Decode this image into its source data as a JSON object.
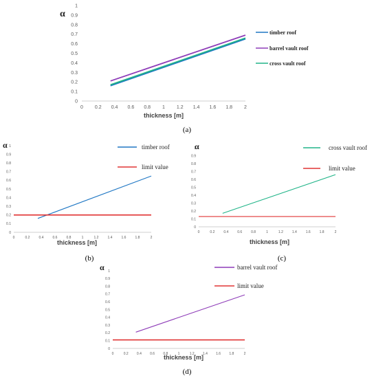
{
  "colors": {
    "timber": "#1f77c4",
    "barrel": "#8e3cb8",
    "cross": "#20b488",
    "limit": "#e03434",
    "axis": "#bfbfbf",
    "tick_text": "#595959"
  },
  "chart_data": [
    {
      "id": "a",
      "type": "line",
      "caption": "(a)",
      "ylabel": "α",
      "xlabel": "thickness [m]",
      "xlim": [
        0,
        2
      ],
      "ylim": [
        0,
        1
      ],
      "x_ticks": [
        "0",
        "0.2",
        "0.4",
        "0.6",
        "0.8",
        "1",
        "1.2",
        "1.4",
        "1.6",
        "1.8",
        "2"
      ],
      "y_ticks": [
        "0",
        "0.1",
        "0.2",
        "0.3",
        "0.4",
        "0.5",
        "0.6",
        "0.7",
        "0.8",
        "0.9",
        "1"
      ],
      "legend_position": "right",
      "series": [
        {
          "name": "timber roof",
          "color": "#1f77c4",
          "x": [
            0.35,
            2
          ],
          "y": [
            0.16,
            0.65
          ]
        },
        {
          "name": "barrel vault roof",
          "color": "#8e3cb8",
          "x": [
            0.35,
            2
          ],
          "y": [
            0.21,
            0.69
          ]
        },
        {
          "name": "cross vault roof",
          "color": "#20b488",
          "x": [
            0.35,
            2
          ],
          "y": [
            0.17,
            0.66
          ]
        }
      ]
    },
    {
      "id": "b",
      "type": "line",
      "caption": "(b)",
      "ylabel": "α",
      "xlabel": "thickness [m]",
      "xlim": [
        0,
        2
      ],
      "ylim": [
        0,
        1
      ],
      "x_ticks": [
        "0",
        "0.2",
        "0.4",
        "0.6",
        "0.8",
        "1",
        "1.2",
        "1.4",
        "1.6",
        "1.8",
        "2"
      ],
      "y_ticks": [
        "0",
        "0.1",
        "0.2",
        "0.3",
        "0.4",
        "0.5",
        "0.6",
        "0.7",
        "0.8",
        "0.9",
        "1"
      ],
      "legend_position": "top-right",
      "series": [
        {
          "name": "timber roof",
          "color": "#1f77c4",
          "x": [
            0.35,
            2
          ],
          "y": [
            0.16,
            0.65
          ]
        },
        {
          "name": "limit value",
          "color": "#e03434",
          "x": [
            0,
            2
          ],
          "y": [
            0.2,
            0.2
          ]
        }
      ]
    },
    {
      "id": "c",
      "type": "line",
      "caption": "(c)",
      "ylabel": "α",
      "xlabel": "thickness [m]",
      "xlim": [
        0,
        2
      ],
      "ylim": [
        0,
        1
      ],
      "x_ticks": [
        "0",
        "0.2",
        "0.4",
        "0.6",
        "0.8",
        "1",
        "1.2",
        "1.4",
        "1.6",
        "1.8",
        "2"
      ],
      "y_ticks": [
        "0",
        "0.1",
        "0.2",
        "0.3",
        "0.4",
        "0.5",
        "0.6",
        "0.7",
        "0.8",
        "0.9",
        "1"
      ],
      "legend_position": "top-right",
      "series": [
        {
          "name": "cross vault roof",
          "color": "#20b488",
          "x": [
            0.35,
            2
          ],
          "y": [
            0.17,
            0.66
          ]
        },
        {
          "name": "limit value",
          "color": "#e03434",
          "x": [
            0,
            2
          ],
          "y": [
            0.13,
            0.13
          ]
        }
      ]
    },
    {
      "id": "d",
      "type": "line",
      "caption": "(d)",
      "ylabel": "α",
      "xlabel": "thickness [m]",
      "xlim": [
        0,
        2
      ],
      "ylim": [
        0,
        1
      ],
      "x_ticks": [
        "0",
        "0.2",
        "0.4",
        "0.6",
        "0.8",
        "1",
        "1.2",
        "1.4",
        "1.6",
        "1.8",
        "2"
      ],
      "y_ticks": [
        "0",
        "0.1",
        "0.2",
        "0.3",
        "0.4",
        "0.5",
        "0.6",
        "0.7",
        "0.8",
        "0.9",
        "1"
      ],
      "legend_position": "top-right",
      "series": [
        {
          "name": "barrel vault roof",
          "color": "#8e3cb8",
          "x": [
            0.35,
            2
          ],
          "y": [
            0.21,
            0.69
          ]
        },
        {
          "name": "limit value",
          "color": "#e03434",
          "x": [
            0,
            2
          ],
          "y": [
            0.11,
            0.11
          ]
        }
      ]
    }
  ]
}
